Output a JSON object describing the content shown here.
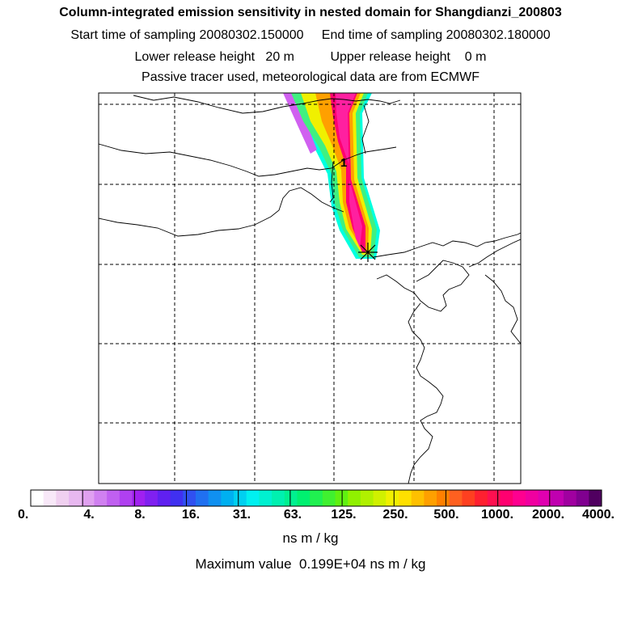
{
  "header": {
    "title": "Column-integrated emission sensitivity in nested domain for Shangdianzi_200803",
    "start_label": "Start time of sampling",
    "start_value": "20080302.150000",
    "end_label": "End time of sampling",
    "end_value": "20080302.180000",
    "lower_label": "Lower release height",
    "lower_value": "20 m",
    "upper_label": "Upper release height",
    "upper_value": "0 m",
    "tracer_note": "Passive tracer used, meteorological data are from ECMWF"
  },
  "map": {
    "trajectory_label": "1",
    "plume_colors": [
      "#00ffe0",
      "#00ff70",
      "#a0ff00",
      "#ffff00",
      "#ffa000",
      "#ff0050",
      "#ff0090"
    ]
  },
  "colorbar": {
    "tick_labels": [
      "0.",
      "4.",
      "8.",
      "16.",
      "31.",
      "63.",
      "125.",
      "250.",
      "500.",
      "1000.",
      "2000.",
      "4000."
    ],
    "colors": [
      "#ffffff",
      "#f8e8f8",
      "#f0d0f0",
      "#e8b8f0",
      "#e0a0f0",
      "#d080f0",
      "#c060f0",
      "#b040f0",
      "#a020f0",
      "#8020f0",
      "#6020f0",
      "#4030f0",
      "#3050f0",
      "#2070f0",
      "#1090f0",
      "#00b0f0",
      "#00d0f0",
      "#00f0f0",
      "#00f0d0",
      "#00f0b0",
      "#00f090",
      "#00f070",
      "#20f050",
      "#40f030",
      "#60f010",
      "#90f000",
      "#b0f000",
      "#d0f000",
      "#f0f000",
      "#ffe000",
      "#ffc000",
      "#ffa000",
      "#ff8000",
      "#ff6020",
      "#ff4020",
      "#ff2030",
      "#ff1050",
      "#ff0070",
      "#ff0090",
      "#f000a0",
      "#e000b0",
      "#c000b0",
      "#a000a0",
      "#800090",
      "#500060"
    ]
  },
  "units": "ns m / kg",
  "max_label": "Maximum value",
  "max_value": "0.199E+04",
  "max_units": "ns m / kg"
}
